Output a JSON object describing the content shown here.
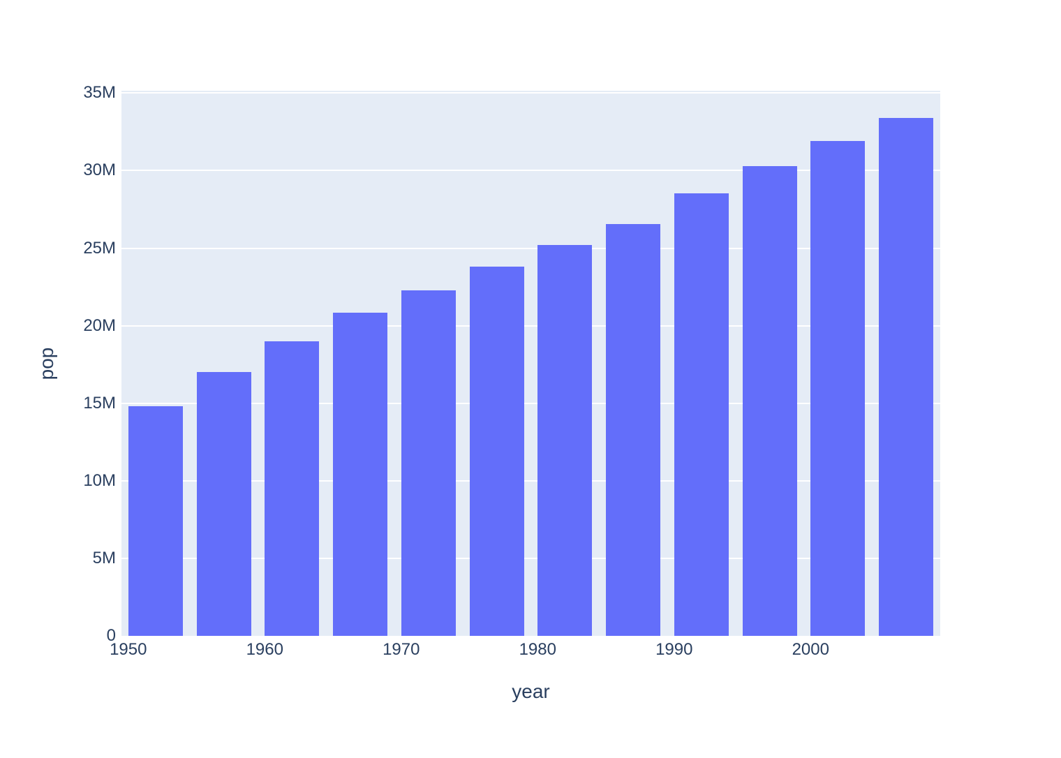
{
  "chart_data": {
    "type": "bar",
    "title": "",
    "xlabel": "year",
    "ylabel": "pop",
    "categories": [
      1952,
      1957,
      1962,
      1967,
      1972,
      1977,
      1982,
      1987,
      1992,
      1997,
      2002,
      2007
    ],
    "values": [
      14785584,
      17010154,
      18985849,
      20819767,
      22284500,
      23796400,
      25201900,
      26549700,
      28523502,
      30305843,
      31902268,
      33390141
    ],
    "series_name": "pop",
    "xlim": [
      1949.5,
      2009.5
    ],
    "ylim": [
      0,
      35150000
    ],
    "xticks": [
      {
        "value": 1950,
        "label": "1950"
      },
      {
        "value": 1960,
        "label": "1960"
      },
      {
        "value": 1970,
        "label": "1970"
      },
      {
        "value": 1980,
        "label": "1980"
      },
      {
        "value": 1990,
        "label": "1990"
      },
      {
        "value": 2000,
        "label": "2000"
      }
    ],
    "yticks": [
      {
        "value": 0,
        "label": "0"
      },
      {
        "value": 5000000,
        "label": "5M"
      },
      {
        "value": 10000000,
        "label": "10M"
      },
      {
        "value": 15000000,
        "label": "15M"
      },
      {
        "value": 20000000,
        "label": "20M"
      },
      {
        "value": 25000000,
        "label": "25M"
      },
      {
        "value": 30000000,
        "label": "30M"
      },
      {
        "value": 35000000,
        "label": "35M"
      }
    ],
    "grid": true,
    "legend": "none",
    "colors": {
      "bar": "#636efa",
      "plot_bg": "#e5ecf6",
      "paper_bg": "#ffffff",
      "grid": "#ffffff",
      "text": "#2a3f5f"
    }
  }
}
